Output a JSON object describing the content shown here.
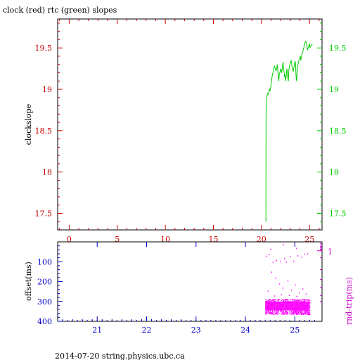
{
  "chart_data": [
    {
      "type": "line",
      "title": "clock (red) rtc (green) slopes",
      "ylabel": "clockslope",
      "xlabel": "",
      "xlim": [
        -1.2,
        26.3
      ],
      "ylim": [
        17.3,
        19.85
      ],
      "x_ticks": [
        0,
        5,
        10,
        15,
        20,
        25
      ],
      "y_ticks": [
        17.5,
        18,
        18.5,
        19,
        19.5
      ],
      "y_ticks_text": [
        "17.5",
        "18",
        "18.5",
        "19",
        "19.5"
      ],
      "grid": false,
      "colors": {
        "left_axis": "#cc0000",
        "right_axis": "#00cc00",
        "series": "#00cc00",
        "frame": "#000000"
      },
      "series": [
        {
          "name": "rtc",
          "color": "#00cc00",
          "x": [
            20.46,
            20.47,
            20.5,
            20.55,
            20.6,
            20.66,
            20.72,
            20.78,
            20.85,
            20.9,
            20.95,
            21.0,
            21.05,
            21.1,
            21.15,
            21.2,
            21.25,
            21.3,
            21.35,
            21.45,
            21.52,
            21.6,
            21.65,
            21.72,
            21.8,
            21.85,
            21.95,
            22.0,
            22.1,
            22.2,
            22.25,
            22.3,
            22.35,
            22.4,
            22.45,
            22.5,
            22.55,
            22.6,
            22.65,
            22.7,
            22.8,
            22.85,
            22.9,
            23.0,
            23.1,
            23.15,
            23.2,
            23.3,
            23.4,
            23.45,
            23.5,
            23.55,
            23.6,
            23.65,
            23.7,
            23.75,
            23.8,
            23.9,
            24.0,
            24.05,
            24.1,
            24.2,
            24.3,
            24.4,
            24.5,
            24.6,
            24.7,
            24.75,
            24.8,
            24.9,
            25.0,
            25.05,
            25.1,
            25.2,
            25.3
          ],
          "values": [
            17.4,
            18.62,
            18.8,
            18.9,
            18.93,
            18.95,
            18.94,
            18.97,
            19.0,
            18.98,
            19.02,
            19.05,
            19.1,
            19.15,
            19.18,
            19.2,
            19.23,
            19.26,
            19.28,
            19.25,
            19.22,
            19.26,
            19.3,
            19.2,
            19.1,
            19.18,
            19.22,
            19.25,
            19.2,
            19.28,
            19.33,
            19.25,
            19.22,
            19.15,
            19.18,
            19.1,
            19.13,
            19.2,
            19.25,
            19.18,
            19.1,
            19.23,
            19.28,
            19.32,
            19.35,
            19.3,
            19.25,
            19.22,
            19.28,
            19.32,
            19.34,
            19.3,
            19.15,
            19.1,
            19.2,
            19.25,
            19.3,
            19.35,
            19.38,
            19.4,
            19.35,
            19.42,
            19.46,
            19.5,
            19.55,
            19.58,
            19.56,
            19.5,
            19.48,
            19.52,
            19.55,
            19.5,
            19.52,
            19.53,
            19.55
          ]
        }
      ]
    },
    {
      "type": "scatter",
      "title": "",
      "ylabel": "offset(ms)",
      "ylabel_right": "rnd-trip(ms)",
      "xlabel": "",
      "xlim": [
        20.2,
        25.55
      ],
      "ylim": [
        400,
        0
      ],
      "x_ticks": [
        21,
        22,
        23,
        24,
        25
      ],
      "y_ticks": [
        100,
        200,
        300,
        400
      ],
      "y_ticks_text": [
        "100",
        "200",
        "300",
        "400"
      ],
      "right_ticks_text": [
        "1"
      ],
      "grid": false,
      "colors": {
        "axis": "#0000cc",
        "right_axis": "#cc00cc",
        "points": "#ff00ff",
        "frame": "#000000"
      },
      "series": [
        {
          "name": "round-trip",
          "color": "#ff00ff",
          "band": {
            "x_range": [
              24.4,
              25.3
            ],
            "y_range": [
              287,
              365
            ],
            "density_per_pixel": 1.25
          },
          "outliers": [
            [
              24.42,
              70
            ],
            [
              24.47,
              62
            ],
            [
              24.55,
              100
            ],
            [
              24.62,
              92
            ],
            [
              24.7,
              95
            ],
            [
              24.78,
              82
            ],
            [
              24.82,
              100
            ],
            [
              24.9,
              72
            ],
            [
              24.97,
              95
            ],
            [
              25.05,
              68
            ],
            [
              25.12,
              75
            ],
            [
              25.18,
              60
            ],
            [
              25.25,
              58
            ],
            [
              24.52,
              150
            ],
            [
              24.6,
              180
            ],
            [
              24.68,
              210
            ],
            [
              24.75,
              230
            ],
            [
              24.85,
              195
            ],
            [
              24.92,
              240
            ],
            [
              25.0,
              215
            ],
            [
              25.08,
              255
            ],
            [
              25.15,
              235
            ],
            [
              25.22,
              260
            ],
            [
              24.45,
              245
            ],
            [
              24.58,
              270
            ],
            [
              24.72,
              263
            ],
            [
              24.88,
              268
            ],
            [
              25.03,
              272
            ],
            [
              24.76,
              12
            ],
            [
              25.02,
              30
            ],
            [
              24.5,
              35
            ]
          ]
        }
      ]
    }
  ],
  "footer": "2014-07-20 string.physics.ubc.ca"
}
